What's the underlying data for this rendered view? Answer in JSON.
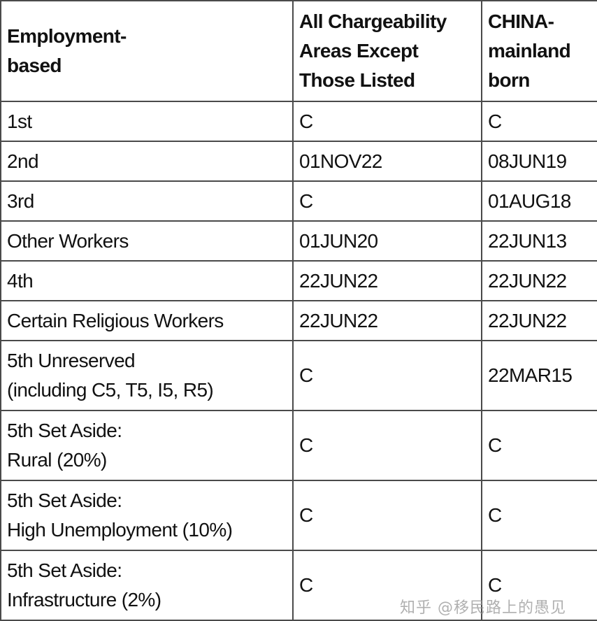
{
  "headers": [
    "Employment-\nbased",
    "All Chargeability Areas Except Those Listed",
    "CHINA-mainland born"
  ],
  "rows": [
    {
      "category": "1st",
      "all": "C",
      "china": "C"
    },
    {
      "category": "2nd",
      "all": "01NOV22",
      "china": "08JUN19"
    },
    {
      "category": "3rd",
      "all": "C",
      "china": "01AUG18"
    },
    {
      "category": "Other Workers",
      "all": "01JUN20",
      "china": "22JUN13"
    },
    {
      "category": "4th",
      "all": "22JUN22",
      "china": "22JUN22"
    },
    {
      "category": "Certain Religious Workers",
      "all": "22JUN22",
      "china": "22JUN22"
    },
    {
      "category": "5th Unreserved (including C5, T5, I5, R5)",
      "all": "C",
      "china": "22MAR15"
    },
    {
      "category": "5th Set Aside: Rural (20%)",
      "all": "C",
      "china": "C"
    },
    {
      "category": "5th Set Aside: High Unemployment (10%)",
      "all": "C",
      "china": "C"
    },
    {
      "category": "5th Set Aside: Infrastructure (2%)",
      "all": "C",
      "china": "C"
    }
  ],
  "watermark": "知乎 @移民路上的愚见"
}
